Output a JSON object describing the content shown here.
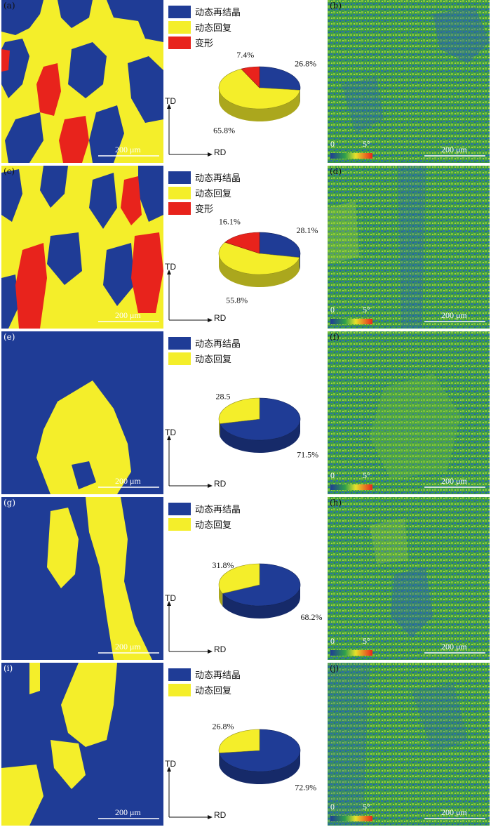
{
  "legend_labels": {
    "drx": "动态再结晶",
    "drv": "动态回复",
    "def": "变形"
  },
  "colors": {
    "drx": "#1f3c96",
    "drv": "#f4ee2a",
    "def": "#e8231c"
  },
  "scale_bar": "200 μm",
  "axes": {
    "td": "TD",
    "rd": "RD"
  },
  "colorbar": {
    "min": "0",
    "max": "5°"
  },
  "rows": [
    {
      "label_left": "(a)",
      "label_right": "(b)",
      "pie": [
        {
          "cls": "drx",
          "value": 26.8,
          "label": "26.8%"
        },
        {
          "cls": "drv",
          "value": 65.8,
          "label": "65.8%"
        },
        {
          "cls": "def",
          "value": 7.4,
          "label": "7.4%"
        }
      ]
    },
    {
      "label_left": "(c)",
      "label_right": "(d)",
      "pie": [
        {
          "cls": "drx",
          "value": 28.1,
          "label": "28.1%"
        },
        {
          "cls": "drv",
          "value": 55.8,
          "label": "55.8%"
        },
        {
          "cls": "def",
          "value": 16.1,
          "label": "16.1%"
        }
      ]
    },
    {
      "label_left": "(e)",
      "label_right": "(f)",
      "pie": [
        {
          "cls": "drx",
          "value": 71.5,
          "label": "71.5%"
        },
        {
          "cls": "drv",
          "value": 28.5,
          "label": "28.5"
        }
      ]
    },
    {
      "label_left": "(g)",
      "label_right": "(h)",
      "pie": [
        {
          "cls": "drx",
          "value": 68.2,
          "label": "68.2%"
        },
        {
          "cls": "drv",
          "value": 31.8,
          "label": "31.8%"
        }
      ]
    },
    {
      "label_left": "(i)",
      "label_right": "(j)",
      "pie": [
        {
          "cls": "drx",
          "value": 72.9,
          "label": "72.9%"
        },
        {
          "cls": "drv",
          "value": 26.8,
          "label": "26.8%"
        }
      ]
    }
  ]
}
